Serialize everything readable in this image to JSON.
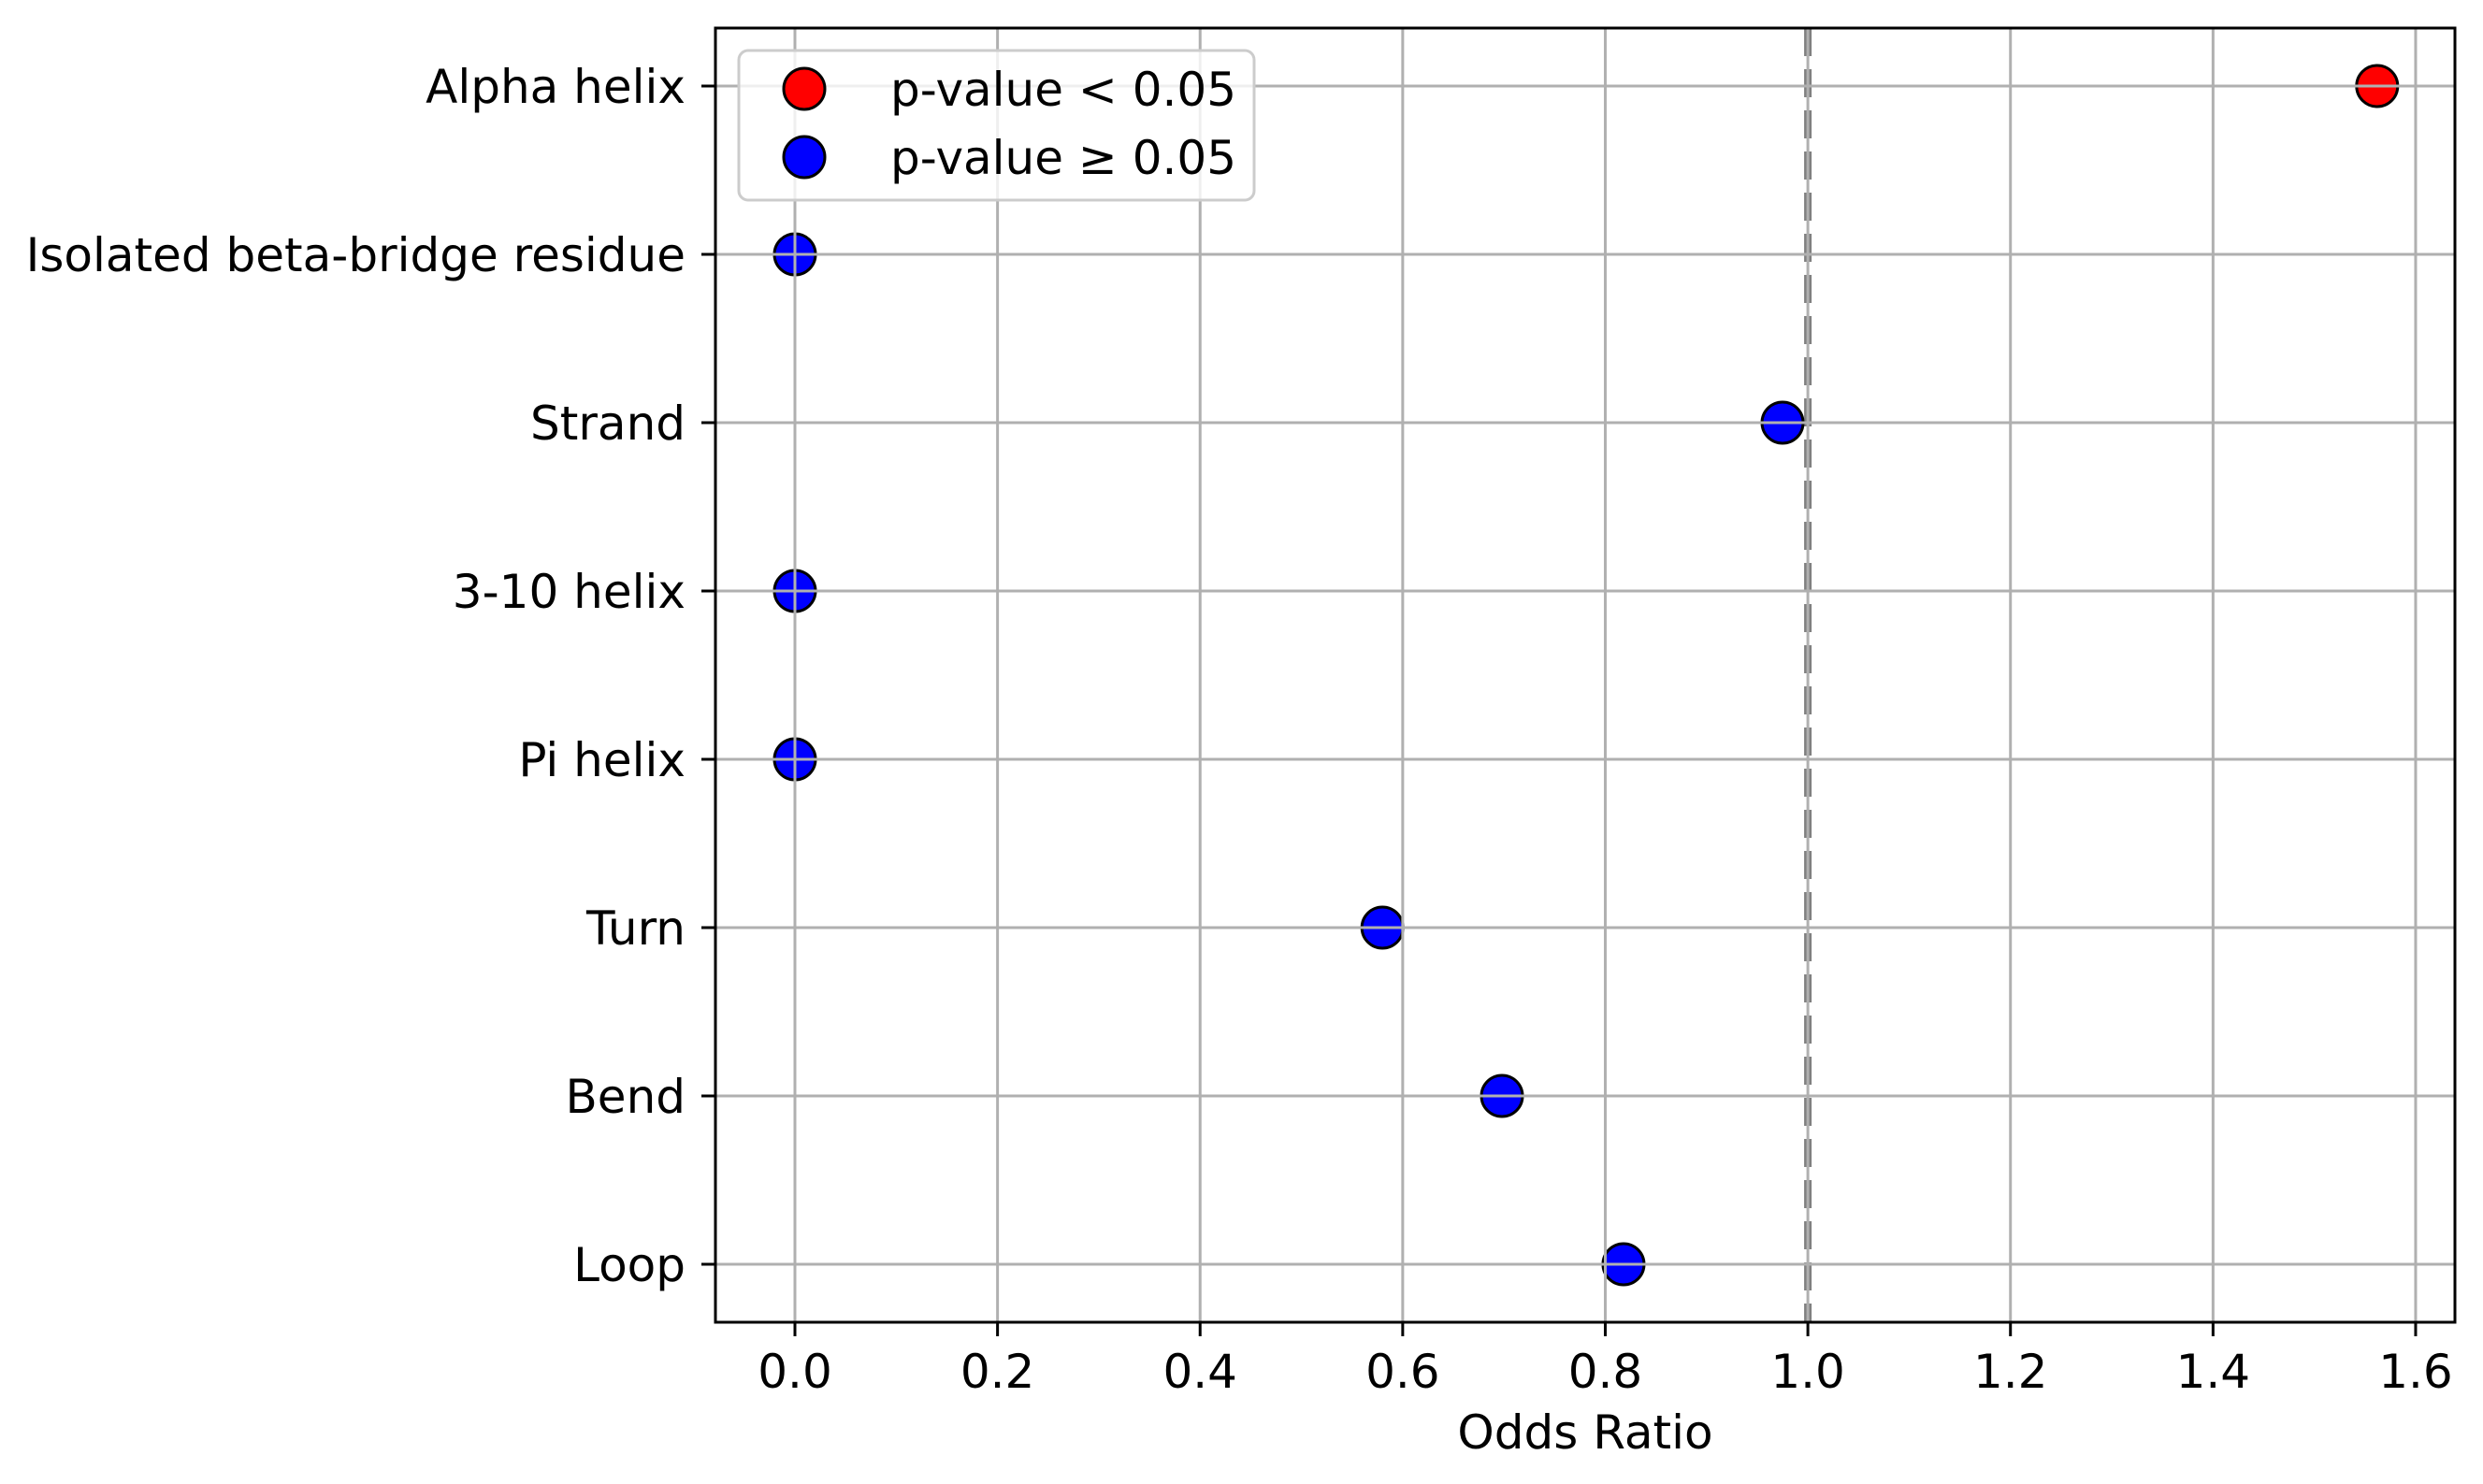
{
  "chart_data": {
    "type": "scatter",
    "title": "",
    "xlabel": "Odds Ratio",
    "ylabel": "",
    "xlim": [
      -0.078,
      1.64
    ],
    "grid": true,
    "legend_position": "upper left",
    "categories": [
      "Alpha helix",
      "Isolated beta-bridge residue",
      "Strand",
      "3-10 helix",
      "Pi helix",
      "Turn",
      "Bend",
      "Loop"
    ],
    "values": [
      1.562,
      0.0,
      0.975,
      0.0,
      0.0,
      0.58,
      0.698,
      0.818
    ],
    "significant": [
      true,
      false,
      false,
      false,
      false,
      false,
      false,
      false
    ],
    "x_ticks": [
      "0.0",
      "0.2",
      "0.4",
      "0.6",
      "0.8",
      "1.0",
      "1.2",
      "1.4",
      "1.6"
    ],
    "x_tick_values": [
      0.0,
      0.2,
      0.4,
      0.6,
      0.8,
      1.0,
      1.2,
      1.4,
      1.6
    ],
    "reference_line": {
      "x": 1.0,
      "style": "dashed",
      "color": "#808080"
    },
    "legend": [
      {
        "label": "p-value < 0.05",
        "color": "#ff0000"
      },
      {
        "label": "p-value ≥ 0.05",
        "color": "#0000ff"
      }
    ]
  },
  "colors": {
    "significant": "#ff0000",
    "not_significant": "#0000ff",
    "marker_edge": "#000000",
    "grid": "#b0b0b0",
    "reference_line": "#808080",
    "legend_frame": "#cccccc"
  }
}
